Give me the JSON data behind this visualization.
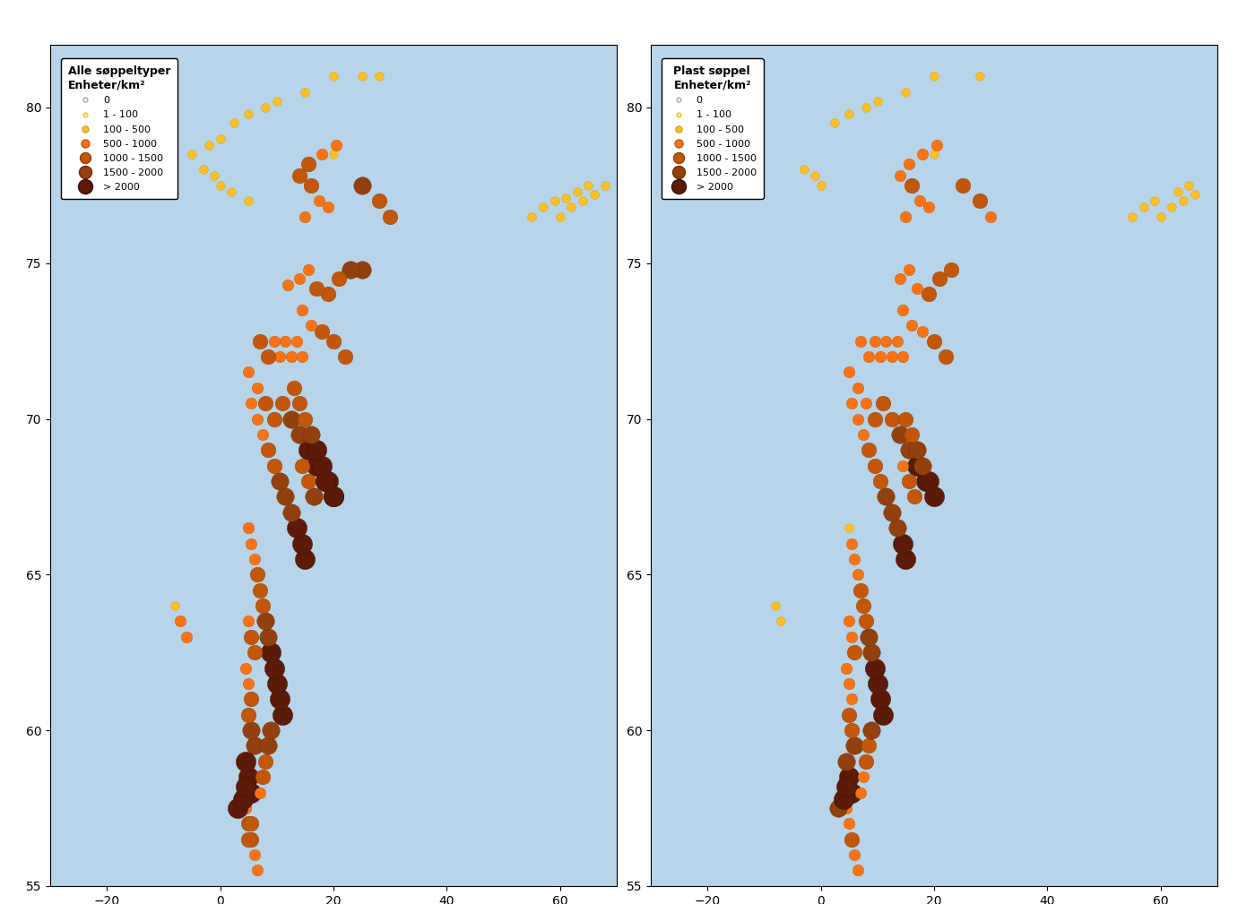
{
  "title_left": "Alle søppeltyper\nEnheter/km²",
  "title_right": "Plast søppel\nEnheter/km²",
  "legend_labels": [
    "0",
    "1 - 100",
    "100 - 500",
    "500 - 1000",
    "1000 - 1500",
    "1500 - 2000",
    "> 2000"
  ],
  "color_bins": [
    0,
    1,
    100,
    500,
    1000,
    1500,
    2000
  ],
  "bin_colors": [
    "#f5f5f5",
    "#fde68a",
    "#fbbf24",
    "#f97316",
    "#c2570a",
    "#92400e",
    "#5c1a08"
  ],
  "bin_edgecolors": [
    "#aaaaaa",
    "#e8c840",
    "#d4a017",
    "#c25a00",
    "#92400e",
    "#6b2f00",
    "#3d0f04"
  ],
  "bin_marker_sizes": [
    4,
    5,
    7,
    9,
    12,
    14,
    16
  ],
  "extent": [
    -30,
    70,
    55,
    82
  ],
  "ocean_color": "#b8d4e8",
  "land_color": "#f0ead8",
  "background_color": "#ffffff",
  "gridline_color": "#888888",
  "xticks": [
    -30,
    -25,
    -15,
    -5,
    0,
    5,
    15,
    25,
    35,
    45,
    55,
    60,
    65,
    70
  ],
  "yticks": [
    56,
    58,
    59,
    60,
    62,
    64,
    66,
    68,
    69,
    70,
    72,
    74,
    76,
    78,
    80
  ],
  "figsize": [
    14.0,
    10.09
  ],
  "dpi": 100,
  "points_all": [
    [
      28.0,
      81.0,
      30
    ],
    [
      25.0,
      81.0,
      20
    ],
    [
      20.0,
      81.0,
      15
    ],
    [
      15.0,
      80.5,
      50
    ],
    [
      10.0,
      80.2,
      40
    ],
    [
      8.0,
      80.0,
      35
    ],
    [
      5.0,
      79.8,
      30
    ],
    [
      2.5,
      79.5,
      25
    ],
    [
      0.0,
      79.0,
      20
    ],
    [
      -2.0,
      78.8,
      15
    ],
    [
      -5.0,
      78.5,
      25
    ],
    [
      20.0,
      78.5,
      30
    ],
    [
      18.0,
      78.5,
      200
    ],
    [
      15.5,
      78.2,
      600
    ],
    [
      14.0,
      77.8,
      500
    ],
    [
      16.0,
      77.5,
      800
    ],
    [
      17.5,
      77.0,
      400
    ],
    [
      19.0,
      76.8,
      250
    ],
    [
      15.0,
      76.5,
      350
    ],
    [
      28.0,
      77.0,
      900
    ],
    [
      25.0,
      77.5,
      1200
    ],
    [
      30.0,
      76.5,
      600
    ],
    [
      20.5,
      78.8,
      150
    ],
    [
      55.0,
      76.5,
      80
    ],
    [
      57.0,
      76.8,
      50
    ],
    [
      59.0,
      77.0,
      40
    ],
    [
      60.0,
      76.5,
      30
    ],
    [
      62.0,
      76.8,
      20
    ],
    [
      64.0,
      77.0,
      15
    ],
    [
      66.0,
      77.2,
      10
    ],
    [
      68.0,
      77.5,
      8
    ],
    [
      65.0,
      77.5,
      12
    ],
    [
      63.0,
      77.3,
      18
    ],
    [
      61.0,
      77.1,
      25
    ],
    [
      25.0,
      74.8,
      1200
    ],
    [
      23.0,
      74.8,
      1000
    ],
    [
      21.0,
      74.5,
      800
    ],
    [
      19.0,
      74.0,
      700
    ],
    [
      17.0,
      74.2,
      600
    ],
    [
      15.5,
      74.8,
      450
    ],
    [
      14.0,
      74.5,
      300
    ],
    [
      12.0,
      74.3,
      250
    ],
    [
      22.0,
      72.0,
      900
    ],
    [
      20.0,
      72.5,
      700
    ],
    [
      18.0,
      72.8,
      500
    ],
    [
      16.0,
      73.0,
      350
    ],
    [
      14.5,
      73.5,
      200
    ],
    [
      14.5,
      72.0,
      450
    ],
    [
      13.5,
      72.5,
      350
    ],
    [
      12.5,
      72.0,
      200
    ],
    [
      11.5,
      72.5,
      250
    ],
    [
      10.5,
      72.0,
      300
    ],
    [
      9.5,
      72.5,
      400
    ],
    [
      8.5,
      72.0,
      500
    ],
    [
      7.0,
      72.5,
      600
    ],
    [
      20.0,
      67.5,
      2200
    ],
    [
      18.5,
      68.0,
      2000
    ],
    [
      17.0,
      68.5,
      1800
    ],
    [
      15.5,
      69.0,
      1500
    ],
    [
      14.0,
      69.5,
      1300
    ],
    [
      12.5,
      70.0,
      1100
    ],
    [
      11.0,
      70.5,
      900
    ],
    [
      9.5,
      70.0,
      700
    ],
    [
      8.0,
      70.5,
      500
    ],
    [
      6.5,
      71.0,
      300
    ],
    [
      5.0,
      71.5,
      200
    ],
    [
      16.5,
      67.5,
      1000
    ],
    [
      15.5,
      68.0,
      800
    ],
    [
      14.5,
      68.5,
      600
    ],
    [
      20.0,
      67.5,
      2200
    ],
    [
      19.0,
      68.0,
      1900
    ],
    [
      18.0,
      68.5,
      1700
    ],
    [
      17.0,
      69.0,
      1500
    ],
    [
      16.0,
      69.5,
      1200
    ],
    [
      15.0,
      70.0,
      900
    ],
    [
      14.0,
      70.5,
      700
    ],
    [
      13.0,
      71.0,
      500
    ],
    [
      20.0,
      67.5,
      2200
    ],
    [
      18.5,
      68.0,
      2100
    ],
    [
      15.0,
      65.5,
      2000
    ],
    [
      14.5,
      66.0,
      1800
    ],
    [
      13.5,
      66.5,
      1600
    ],
    [
      12.5,
      67.0,
      1400
    ],
    [
      11.5,
      67.5,
      1200
    ],
    [
      10.5,
      68.0,
      1000
    ],
    [
      9.5,
      68.5,
      800
    ],
    [
      8.5,
      69.0,
      600
    ],
    [
      7.5,
      69.5,
      400
    ],
    [
      6.5,
      70.0,
      250
    ],
    [
      5.5,
      70.5,
      150
    ],
    [
      11.0,
      60.5,
      2300
    ],
    [
      10.5,
      61.0,
      2100
    ],
    [
      10.0,
      61.5,
      1900
    ],
    [
      9.5,
      62.0,
      1700
    ],
    [
      9.0,
      62.5,
      1500
    ],
    [
      8.5,
      63.0,
      1300
    ],
    [
      8.0,
      63.5,
      1100
    ],
    [
      7.5,
      64.0,
      900
    ],
    [
      7.0,
      64.5,
      700
    ],
    [
      6.5,
      65.0,
      500
    ],
    [
      6.0,
      65.5,
      350
    ],
    [
      5.5,
      66.0,
      200
    ],
    [
      5.0,
      66.5,
      100
    ],
    [
      6.0,
      62.5,
      700
    ],
    [
      5.5,
      63.0,
      500
    ],
    [
      5.0,
      63.5,
      300
    ],
    [
      5.5,
      61.0,
      500
    ],
    [
      5.0,
      61.5,
      300
    ],
    [
      4.5,
      62.0,
      150
    ],
    [
      6.0,
      59.5,
      1200
    ],
    [
      5.5,
      60.0,
      1000
    ],
    [
      5.0,
      60.5,
      700
    ],
    [
      5.5,
      58.0,
      2000
    ],
    [
      5.0,
      58.5,
      1800
    ],
    [
      4.5,
      59.0,
      1500
    ],
    [
      5.5,
      56.5,
      800
    ],
    [
      5.0,
      57.0,
      600
    ],
    [
      4.5,
      57.5,
      400
    ],
    [
      6.5,
      55.5,
      200
    ],
    [
      6.0,
      56.0,
      300
    ],
    [
      -8.0,
      64.0,
      80
    ],
    [
      -7.0,
      63.5,
      100
    ],
    [
      -6.0,
      63.0,
      150
    ],
    [
      3.0,
      57.5,
      1600
    ],
    [
      4.0,
      57.8,
      1800
    ],
    [
      4.5,
      58.2,
      2000
    ],
    [
      5.0,
      56.5,
      500
    ],
    [
      5.5,
      57.0,
      700
    ],
    [
      7.0,
      58.0,
      400
    ],
    [
      7.5,
      58.5,
      600
    ],
    [
      8.0,
      59.0,
      800
    ],
    [
      8.5,
      59.5,
      1000
    ],
    [
      9.0,
      60.0,
      1200
    ],
    [
      -3.0,
      78.0,
      50
    ],
    [
      -1.0,
      77.8,
      45
    ],
    [
      0.0,
      77.5,
      45
    ],
    [
      2.0,
      77.3,
      40
    ],
    [
      5.0,
      77.0,
      35
    ]
  ],
  "points_plastic": [
    [
      28.0,
      81.0,
      20
    ],
    [
      20.0,
      81.0,
      12
    ],
    [
      15.0,
      80.5,
      35
    ],
    [
      10.0,
      80.2,
      28
    ],
    [
      8.0,
      80.0,
      22
    ],
    [
      5.0,
      79.8,
      18
    ],
    [
      2.5,
      79.5,
      15
    ],
    [
      20.0,
      78.5,
      20
    ],
    [
      18.0,
      78.5,
      150
    ],
    [
      15.5,
      78.2,
      450
    ],
    [
      14.0,
      77.8,
      350
    ],
    [
      16.0,
      77.5,
      600
    ],
    [
      17.5,
      77.0,
      300
    ],
    [
      19.0,
      76.8,
      180
    ],
    [
      15.0,
      76.5,
      250
    ],
    [
      28.0,
      77.0,
      700
    ],
    [
      25.0,
      77.5,
      950
    ],
    [
      30.0,
      76.5,
      450
    ],
    [
      20.5,
      78.8,
      100
    ],
    [
      55.0,
      76.5,
      50
    ],
    [
      57.0,
      76.8,
      30
    ],
    [
      59.0,
      77.0,
      22
    ],
    [
      60.0,
      76.5,
      18
    ],
    [
      62.0,
      76.8,
      12
    ],
    [
      64.0,
      77.0,
      10
    ],
    [
      66.0,
      77.2,
      8
    ],
    [
      65.0,
      77.5,
      10
    ],
    [
      63.0,
      77.3,
      14
    ],
    [
      23.0,
      74.8,
      900
    ],
    [
      21.0,
      74.5,
      700
    ],
    [
      19.0,
      74.0,
      580
    ],
    [
      17.0,
      74.2,
      480
    ],
    [
      15.5,
      74.8,
      330
    ],
    [
      14.0,
      74.5,
      200
    ],
    [
      22.0,
      72.0,
      700
    ],
    [
      20.0,
      72.5,
      550
    ],
    [
      18.0,
      72.8,
      400
    ],
    [
      16.0,
      73.0,
      280
    ],
    [
      14.5,
      73.5,
      150
    ],
    [
      14.5,
      72.0,
      350
    ],
    [
      13.5,
      72.5,
      250
    ],
    [
      12.5,
      72.0,
      150
    ],
    [
      11.5,
      72.5,
      180
    ],
    [
      10.5,
      72.0,
      220
    ],
    [
      9.5,
      72.5,
      280
    ],
    [
      8.5,
      72.0,
      350
    ],
    [
      7.0,
      72.5,
      450
    ],
    [
      20.0,
      67.5,
      1900
    ],
    [
      18.5,
      68.0,
      1700
    ],
    [
      17.0,
      68.5,
      1500
    ],
    [
      15.5,
      69.0,
      1300
    ],
    [
      14.0,
      69.5,
      1100
    ],
    [
      12.5,
      70.0,
      900
    ],
    [
      11.0,
      70.5,
      700
    ],
    [
      9.5,
      70.0,
      550
    ],
    [
      8.0,
      70.5,
      380
    ],
    [
      6.5,
      71.0,
      220
    ],
    [
      5.0,
      71.5,
      150
    ],
    [
      16.5,
      67.5,
      850
    ],
    [
      15.5,
      68.0,
      650
    ],
    [
      14.5,
      68.5,
      450
    ],
    [
      19.0,
      68.0,
      1600
    ],
    [
      18.0,
      68.5,
      1400
    ],
    [
      17.0,
      69.0,
      1200
    ],
    [
      16.0,
      69.5,
      950
    ],
    [
      15.0,
      70.0,
      750
    ],
    [
      15.0,
      65.5,
      1850
    ],
    [
      14.5,
      66.0,
      1650
    ],
    [
      13.5,
      66.5,
      1450
    ],
    [
      12.5,
      67.0,
      1250
    ],
    [
      11.5,
      67.5,
      1050
    ],
    [
      10.5,
      68.0,
      850
    ],
    [
      9.5,
      68.5,
      680
    ],
    [
      8.5,
      69.0,
      500
    ],
    [
      7.5,
      69.5,
      320
    ],
    [
      6.5,
      70.0,
      180
    ],
    [
      5.5,
      70.5,
      100
    ],
    [
      11.0,
      60.5,
      2100
    ],
    [
      10.5,
      61.0,
      1950
    ],
    [
      10.0,
      61.5,
      1750
    ],
    [
      9.5,
      62.0,
      1550
    ],
    [
      9.0,
      62.5,
      1350
    ],
    [
      8.5,
      63.0,
      1150
    ],
    [
      8.0,
      63.5,
      950
    ],
    [
      7.5,
      64.0,
      780
    ],
    [
      7.0,
      64.5,
      600
    ],
    [
      6.5,
      65.0,
      420
    ],
    [
      6.0,
      65.5,
      280
    ],
    [
      5.5,
      66.0,
      150
    ],
    [
      5.0,
      66.5,
      70
    ],
    [
      6.0,
      62.5,
      580
    ],
    [
      5.5,
      63.0,
      400
    ],
    [
      5.0,
      63.5,
      230
    ],
    [
      5.5,
      61.0,
      400
    ],
    [
      5.0,
      61.5,
      230
    ],
    [
      4.5,
      62.0,
      100
    ],
    [
      6.0,
      59.5,
      1050
    ],
    [
      5.5,
      60.0,
      820
    ],
    [
      5.0,
      60.5,
      580
    ],
    [
      5.5,
      58.0,
      1850
    ],
    [
      5.0,
      58.5,
      1600
    ],
    [
      4.5,
      59.0,
      1300
    ],
    [
      5.5,
      56.5,
      680
    ],
    [
      5.0,
      57.0,
      480
    ],
    [
      4.5,
      57.5,
      300
    ],
    [
      6.5,
      55.5,
      150
    ],
    [
      6.0,
      56.0,
      230
    ],
    [
      -8.0,
      64.0,
      60
    ],
    [
      -7.0,
      63.5,
      80
    ],
    [
      3.0,
      57.5,
      1300
    ],
    [
      4.0,
      57.8,
      1500
    ],
    [
      4.5,
      58.2,
      1700
    ],
    [
      7.0,
      58.0,
      300
    ],
    [
      7.5,
      58.5,
      480
    ],
    [
      8.0,
      59.0,
      650
    ],
    [
      8.5,
      59.5,
      850
    ],
    [
      9.0,
      60.0,
      1000
    ],
    [
      -3.0,
      78.0,
      38
    ],
    [
      -1.0,
      77.8,
      32
    ],
    [
      0.0,
      77.5,
      28
    ]
  ]
}
